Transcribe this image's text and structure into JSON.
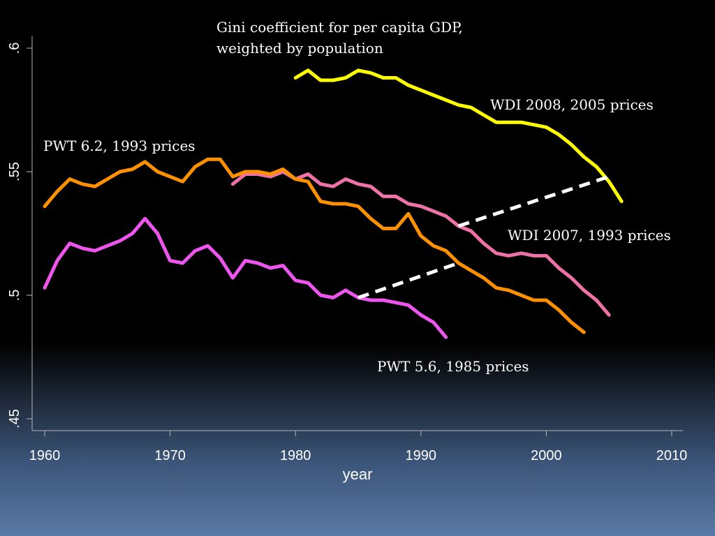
{
  "chart_data": {
    "type": "line",
    "title_lines": [
      "Gini coefficient for per capita GDP,",
      "weighted by population"
    ],
    "xlabel": "year",
    "ylabel": "",
    "xlim": [
      1960,
      2010
    ],
    "ylim": [
      0.45,
      0.6
    ],
    "x_ticks": [
      1960,
      1970,
      1980,
      1990,
      2000,
      2010
    ],
    "x_tick_labels": [
      "1960",
      "1970",
      "1980",
      "1990",
      "2000",
      "2010"
    ],
    "y_ticks": [
      0.45,
      0.5,
      0.55,
      0.6
    ],
    "y_tick_labels": [
      ".45",
      ".5",
      ".55",
      ".6"
    ],
    "grid": false,
    "series": [
      {
        "name": "WDI 2008, 2005 prices",
        "color": "#ffff00",
        "x": [
          1980,
          1981,
          1982,
          1983,
          1984,
          1985,
          1986,
          1987,
          1988,
          1989,
          1990,
          1991,
          1992,
          1993,
          1994,
          1995,
          1996,
          1997,
          1998,
          1999,
          2000,
          2001,
          2002,
          2003,
          2004,
          2005,
          2006
        ],
        "y": [
          0.588,
          0.591,
          0.587,
          0.587,
          0.588,
          0.591,
          0.59,
          0.588,
          0.588,
          0.585,
          0.583,
          0.581,
          0.579,
          0.577,
          0.576,
          0.573,
          0.57,
          0.57,
          0.57,
          0.569,
          0.568,
          0.565,
          0.561,
          0.556,
          0.552,
          0.546,
          0.538
        ]
      },
      {
        "name": "WDI 2007, 1993 prices",
        "color": "#ee72a8",
        "x": [
          1975,
          1976,
          1977,
          1978,
          1979,
          1980,
          1981,
          1982,
          1983,
          1984,
          1985,
          1986,
          1987,
          1988,
          1989,
          1990,
          1991,
          1992,
          1993,
          1994,
          1995,
          1996,
          1997,
          1998,
          1999,
          2000,
          2001,
          2002,
          2003,
          2004,
          2005
        ],
        "y": [
          0.545,
          0.549,
          0.549,
          0.548,
          0.55,
          0.547,
          0.549,
          0.545,
          0.544,
          0.547,
          0.545,
          0.544,
          0.54,
          0.54,
          0.537,
          0.536,
          0.534,
          0.532,
          0.528,
          0.526,
          0.521,
          0.517,
          0.516,
          0.517,
          0.516,
          0.516,
          0.511,
          0.507,
          0.502,
          0.498,
          0.492
        ]
      },
      {
        "name": "PWT 6.2, 1993 prices",
        "color": "#ff9000",
        "x": [
          1960,
          1961,
          1962,
          1963,
          1964,
          1965,
          1966,
          1967,
          1968,
          1969,
          1970,
          1971,
          1972,
          1973,
          1974,
          1975,
          1976,
          1977,
          1978,
          1979,
          1980,
          1981,
          1982,
          1983,
          1984,
          1985,
          1986,
          1987,
          1988,
          1989,
          1990,
          1991,
          1992,
          1993,
          1994,
          1995,
          1996,
          1997,
          1998,
          1999,
          2000,
          2001,
          2002,
          2003
        ],
        "y": [
          0.536,
          0.542,
          0.547,
          0.545,
          0.544,
          0.547,
          0.55,
          0.551,
          0.554,
          0.55,
          0.548,
          0.546,
          0.552,
          0.555,
          0.555,
          0.548,
          0.55,
          0.55,
          0.549,
          0.551,
          0.547,
          0.546,
          0.538,
          0.537,
          0.537,
          0.536,
          0.531,
          0.527,
          0.527,
          0.533,
          0.524,
          0.52,
          0.518,
          0.513,
          0.51,
          0.507,
          0.503,
          0.502,
          0.5,
          0.498,
          0.498,
          0.494,
          0.489,
          0.485
        ]
      },
      {
        "name": "PWT 5.6, 1985 prices",
        "color": "#ee55ee",
        "x": [
          1960,
          1961,
          1962,
          1963,
          1964,
          1965,
          1966,
          1967,
          1968,
          1969,
          1970,
          1971,
          1972,
          1973,
          1974,
          1975,
          1976,
          1977,
          1978,
          1979,
          1980,
          1981,
          1982,
          1983,
          1984,
          1985,
          1986,
          1987,
          1988,
          1989,
          1990,
          1991,
          1992
        ],
        "y": [
          0.503,
          0.514,
          0.521,
          0.519,
          0.518,
          0.52,
          0.522,
          0.525,
          0.531,
          0.525,
          0.514,
          0.513,
          0.518,
          0.52,
          0.515,
          0.507,
          0.514,
          0.513,
          0.511,
          0.512,
          0.506,
          0.505,
          0.5,
          0.499,
          0.502,
          0.499,
          0.498,
          0.498,
          0.497,
          0.496,
          0.492,
          0.489,
          0.483
        ]
      }
    ],
    "connectors": [
      {
        "from": [
          1985,
          0.499
        ],
        "to": [
          1993,
          0.513
        ]
      },
      {
        "from": [
          1993,
          0.528
        ],
        "to": [
          2005,
          0.548
        ]
      }
    ],
    "annotations": [
      {
        "text": "WDI 2008, 2005 prices",
        "at": [
          1996,
          0.57
        ]
      },
      {
        "text": "PWT 6.2, 1993 prices",
        "at": [
          1960,
          0.56
        ]
      },
      {
        "text": "WDI 2007, 1993 prices",
        "at": [
          1997,
          0.523
        ]
      },
      {
        "text": "PWT 5.6, 1985 prices",
        "at": [
          1986,
          0.475
        ]
      }
    ]
  }
}
